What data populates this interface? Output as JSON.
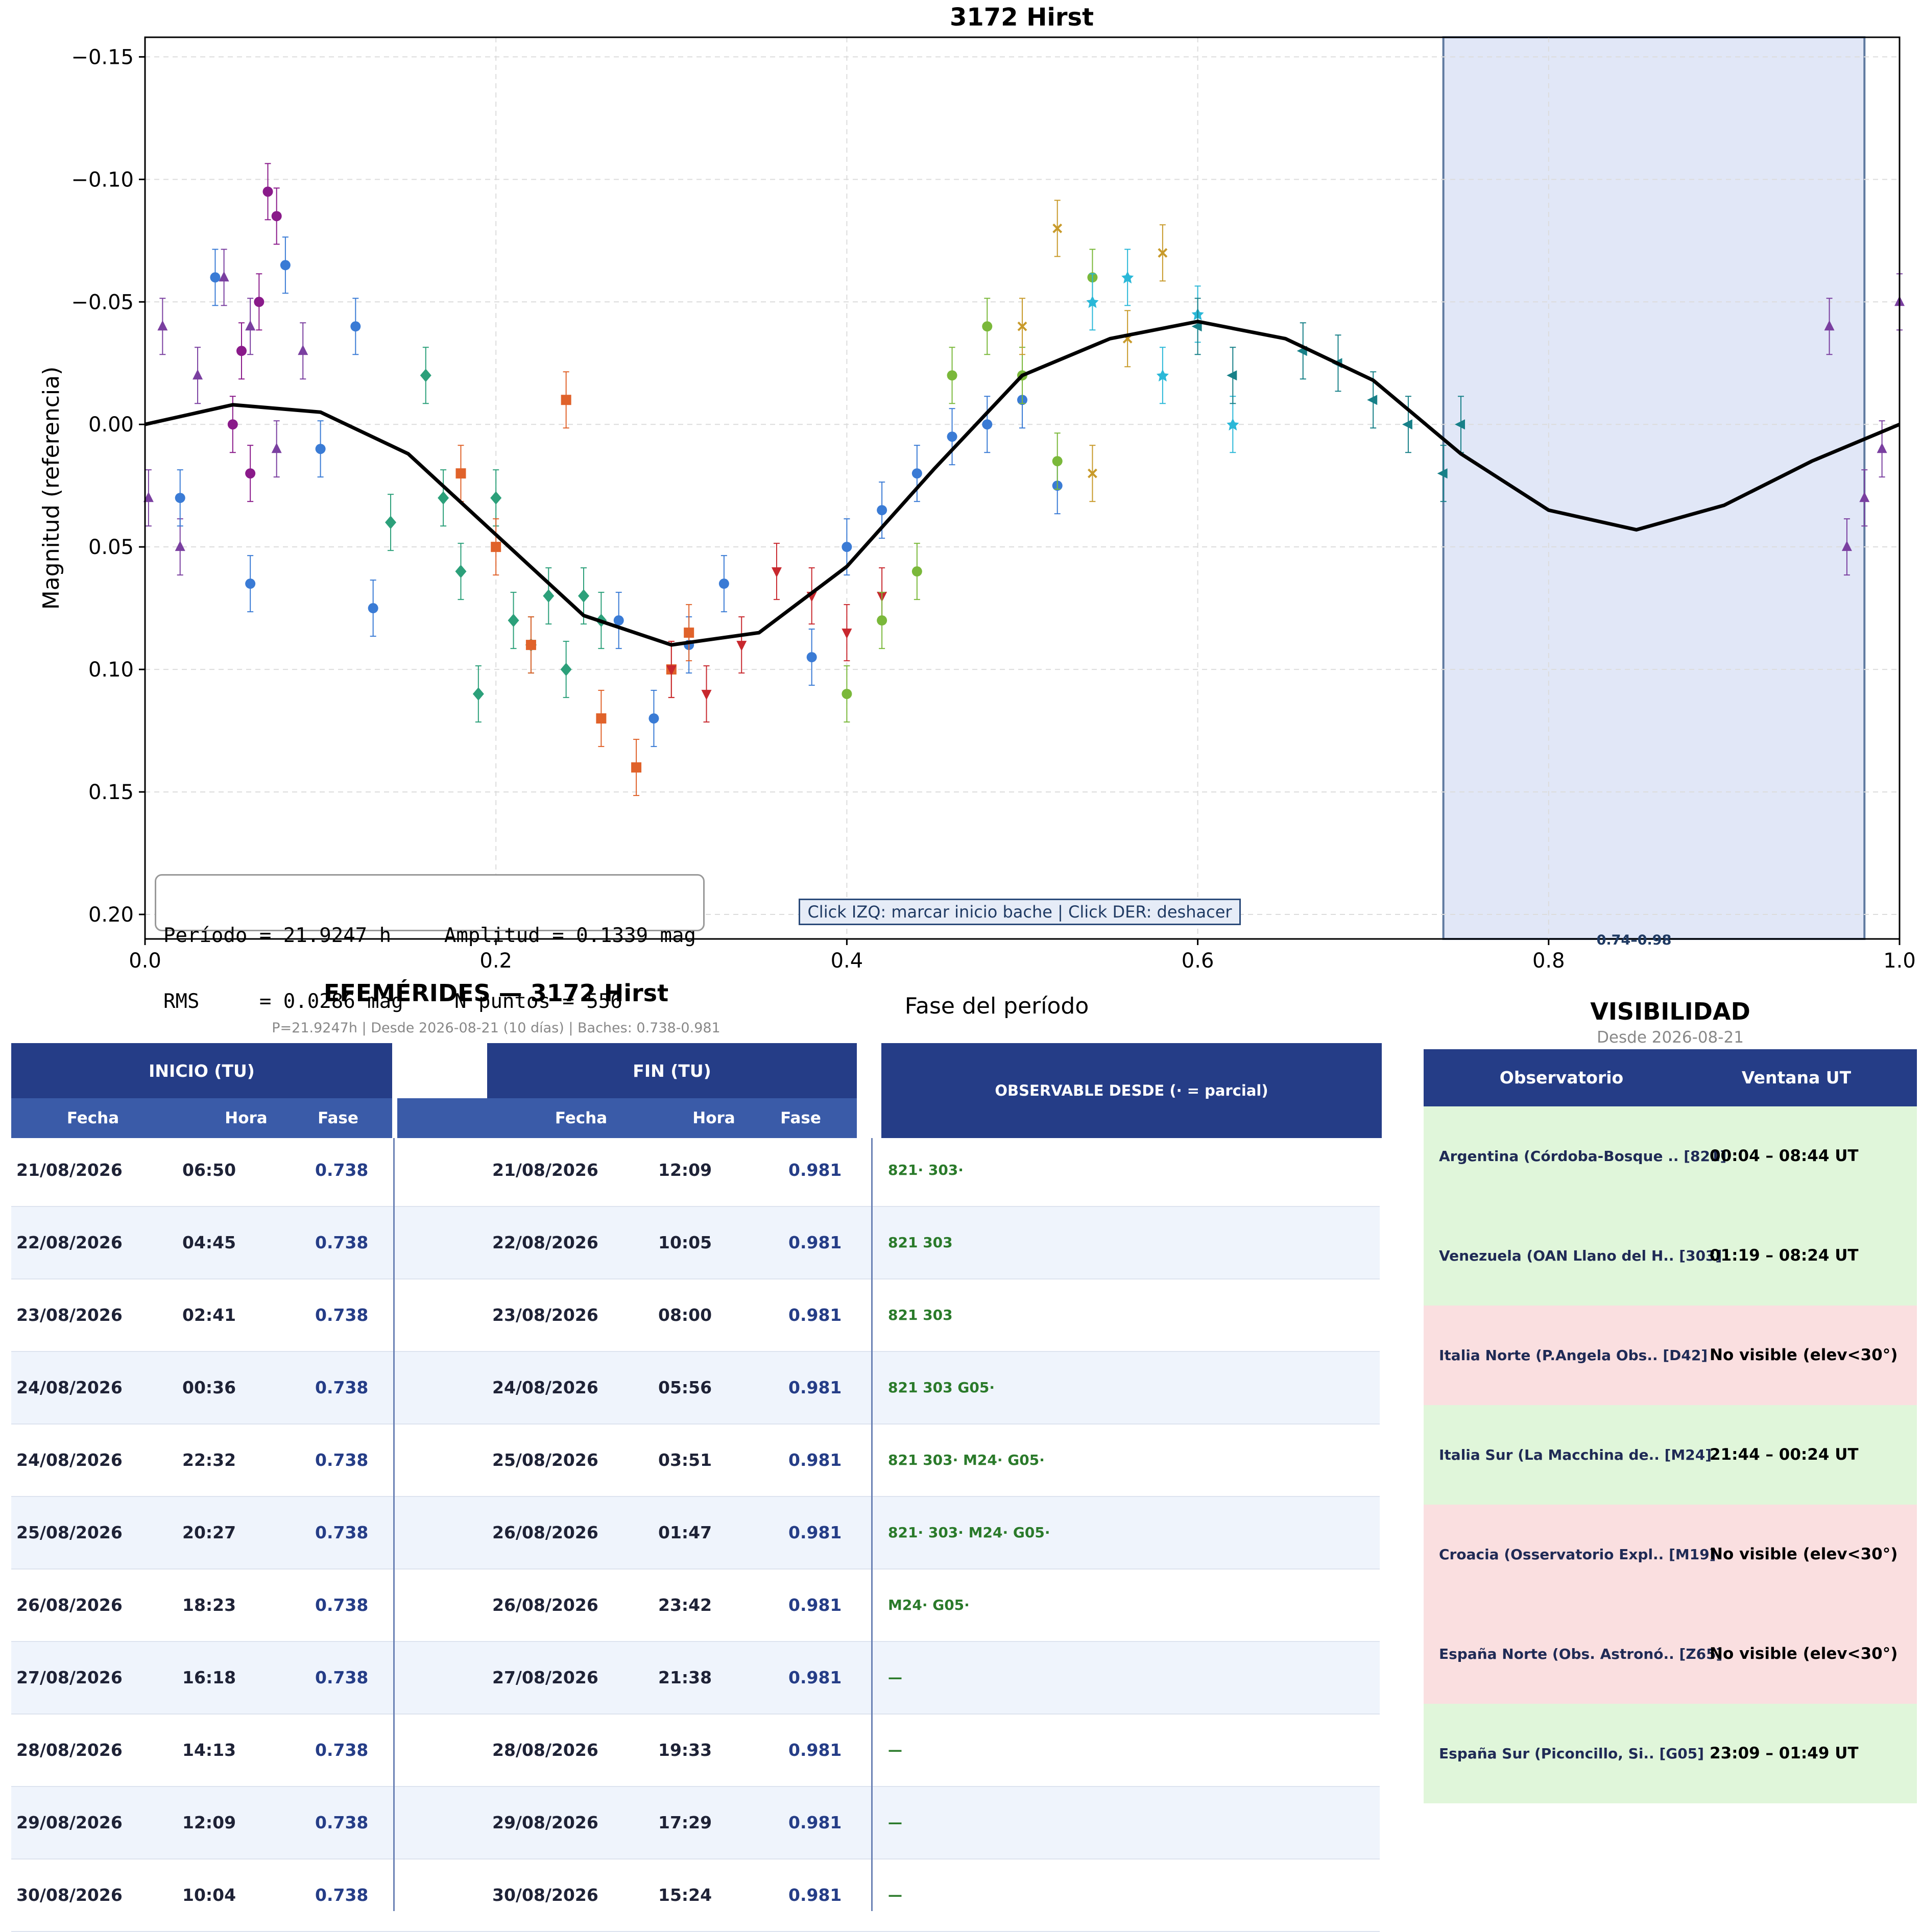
{
  "chart_data": {
    "type": "scatter",
    "title": "3172 Hirst",
    "xlabel": "Fase del período",
    "ylabel": "Magnitud (referencia)",
    "xlim": [
      0.0,
      1.0
    ],
    "ylim": [
      0.21,
      -0.158
    ],
    "y_inverted": true,
    "grid": true,
    "xticks": [
      "0.0",
      "0.2",
      "0.4",
      "0.6",
      "0.8",
      "1.0"
    ],
    "xtick_values": [
      0.0,
      0.2,
      0.4,
      0.6,
      0.8,
      1.0
    ],
    "yticks": [
      "−0.15",
      "−0.10",
      "−0.05",
      "0.00",
      "0.05",
      "0.10",
      "0.15",
      "0.20"
    ],
    "ytick_values": [
      -0.15,
      -0.1,
      -0.05,
      0.0,
      0.05,
      0.1,
      0.15,
      0.2
    ],
    "fit_curve": {
      "color": "#000000",
      "phase_mag": [
        [
          0.0,
          0.0
        ],
        [
          0.05,
          -0.008
        ],
        [
          0.1,
          -0.005
        ],
        [
          0.15,
          0.012
        ],
        [
          0.2,
          0.045
        ],
        [
          0.25,
          0.078
        ],
        [
          0.3,
          0.09
        ],
        [
          0.35,
          0.085
        ],
        [
          0.4,
          0.058
        ],
        [
          0.45,
          0.018
        ],
        [
          0.5,
          -0.02
        ],
        [
          0.55,
          -0.035
        ],
        [
          0.6,
          -0.042
        ],
        [
          0.65,
          -0.035
        ],
        [
          0.7,
          -0.018
        ],
        [
          0.75,
          0.012
        ],
        [
          0.8,
          0.035
        ],
        [
          0.85,
          0.043
        ],
        [
          0.9,
          0.033
        ],
        [
          0.95,
          0.015
        ],
        [
          1.0,
          0.0
        ]
      ]
    },
    "highlight_span": {
      "x": [
        0.74,
        0.98
      ],
      "label": "0.74–0.98",
      "color": "#e1e7f7"
    },
    "series": [
      {
        "color": "#7a3fa0",
        "marker": "triangle",
        "x": [
          0.002,
          0.01,
          0.02,
          0.03,
          0.045,
          0.06,
          0.075,
          0.09,
          0.96,
          0.97,
          0.98,
          0.99,
          1.0
        ],
        "y": [
          0.03,
          -0.04,
          0.05,
          -0.02,
          -0.06,
          -0.04,
          0.01,
          -0.03,
          -0.04,
          0.05,
          0.03,
          0.01,
          -0.05
        ]
      },
      {
        "color": "#8a1a8a",
        "marker": "circle",
        "x": [
          0.05,
          0.055,
          0.06,
          0.065,
          0.07,
          0.075
        ],
        "y": [
          0.0,
          -0.03,
          0.02,
          -0.05,
          -0.095,
          -0.085
        ]
      },
      {
        "color": "#3a7bd5",
        "marker": "circle",
        "x": [
          0.02,
          0.04,
          0.06,
          0.08,
          0.1,
          0.12,
          0.13,
          0.27,
          0.29,
          0.31,
          0.33,
          0.38,
          0.4,
          0.42,
          0.44,
          0.46,
          0.48,
          0.5,
          0.52
        ],
        "y": [
          0.03,
          -0.06,
          0.065,
          -0.065,
          0.01,
          -0.04,
          0.075,
          0.08,
          0.12,
          0.09,
          0.065,
          0.095,
          0.05,
          0.035,
          0.02,
          0.005,
          0.0,
          -0.01,
          0.025
        ]
      },
      {
        "color": "#2ca07a",
        "marker": "diamond",
        "x": [
          0.14,
          0.16,
          0.17,
          0.18,
          0.19,
          0.2,
          0.21,
          0.22,
          0.23,
          0.24,
          0.25,
          0.26
        ],
        "y": [
          0.04,
          -0.02,
          0.03,
          0.06,
          0.11,
          0.03,
          0.08,
          0.09,
          0.07,
          0.1,
          0.07,
          0.08
        ]
      },
      {
        "color": "#e0622a",
        "marker": "square",
        "x": [
          0.18,
          0.2,
          0.22,
          0.24,
          0.26,
          0.28,
          0.3,
          0.31
        ],
        "y": [
          0.02,
          0.05,
          0.09,
          -0.01,
          0.12,
          0.14,
          0.1,
          0.085
        ]
      },
      {
        "color": "#c8282e",
        "marker": "triangle-down",
        "x": [
          0.3,
          0.32,
          0.34,
          0.36,
          0.38,
          0.4,
          0.42
        ],
        "y": [
          0.1,
          0.11,
          0.09,
          0.06,
          0.07,
          0.085,
          0.07
        ]
      },
      {
        "color": "#7ab83a",
        "marker": "hexagon",
        "x": [
          0.4,
          0.42,
          0.44,
          0.46,
          0.48,
          0.5,
          0.52,
          0.54
        ],
        "y": [
          0.11,
          0.08,
          0.06,
          -0.02,
          -0.04,
          -0.02,
          0.015,
          -0.06
        ]
      },
      {
        "color": "#c89a2a",
        "marker": "x",
        "x": [
          0.5,
          0.52,
          0.54,
          0.56,
          0.58
        ],
        "y": [
          -0.04,
          -0.08,
          0.02,
          -0.035,
          -0.07
        ]
      },
      {
        "color": "#2ab8d8",
        "marker": "star",
        "x": [
          0.54,
          0.56,
          0.58,
          0.6,
          0.62
        ],
        "y": [
          -0.05,
          -0.06,
          -0.02,
          -0.045,
          0.0
        ]
      },
      {
        "color": "#178088",
        "marker": "triangle-left",
        "x": [
          0.6,
          0.62,
          0.66,
          0.68,
          0.7,
          0.72,
          0.74,
          0.75
        ],
        "y": [
          -0.04,
          -0.02,
          -0.03,
          -0.025,
          -0.01,
          0.0,
          0.02,
          0.0
        ]
      }
    ]
  },
  "stats": {
    "periodo": "Período = 21.9247 h",
    "amplitud": "Amplitud = 0.1339 mag",
    "rms": "RMS     = 0.0286 mag",
    "npuntos": "N puntos = 556"
  },
  "hint": "Click IZQ: marcar inicio bache  |  Click DER: deshacer",
  "ephemeris": {
    "title": "EFEMÉRIDES — 3172 Hirst",
    "subtitle": "P=21.9247h  |  Desde 2026-08-21 (10 días)  |  Baches: 0.738-0.981",
    "inicio_header": "INICIO (TU)",
    "fin_header": "FIN (TU)",
    "observable_header": "OBSERVABLE DESDE  (· = parcial)",
    "col_fecha": "Fecha",
    "col_hora": "Hora",
    "col_fase": "Fase",
    "rows": [
      {
        "d1": "21/08/2026",
        "h1": "06:50",
        "f1": "0.738",
        "d2": "21/08/2026",
        "h2": "12:09",
        "f2": "0.981",
        "obs": "821· 303·"
      },
      {
        "d1": "22/08/2026",
        "h1": "04:45",
        "f1": "0.738",
        "d2": "22/08/2026",
        "h2": "10:05",
        "f2": "0.981",
        "obs": "821 303"
      },
      {
        "d1": "23/08/2026",
        "h1": "02:41",
        "f1": "0.738",
        "d2": "23/08/2026",
        "h2": "08:00",
        "f2": "0.981",
        "obs": "821 303"
      },
      {
        "d1": "24/08/2026",
        "h1": "00:36",
        "f1": "0.738",
        "d2": "24/08/2026",
        "h2": "05:56",
        "f2": "0.981",
        "obs": "821 303 G05·"
      },
      {
        "d1": "24/08/2026",
        "h1": "22:32",
        "f1": "0.738",
        "d2": "25/08/2026",
        "h2": "03:51",
        "f2": "0.981",
        "obs": "821 303· M24· G05·"
      },
      {
        "d1": "25/08/2026",
        "h1": "20:27",
        "f1": "0.738",
        "d2": "26/08/2026",
        "h2": "01:47",
        "f2": "0.981",
        "obs": "821· 303· M24· G05·"
      },
      {
        "d1": "26/08/2026",
        "h1": "18:23",
        "f1": "0.738",
        "d2": "26/08/2026",
        "h2": "23:42",
        "f2": "0.981",
        "obs": "M24· G05·"
      },
      {
        "d1": "27/08/2026",
        "h1": "16:18",
        "f1": "0.738",
        "d2": "27/08/2026",
        "h2": "21:38",
        "f2": "0.981",
        "obs": "—"
      },
      {
        "d1": "28/08/2026",
        "h1": "14:13",
        "f1": "0.738",
        "d2": "28/08/2026",
        "h2": "19:33",
        "f2": "0.981",
        "obs": "—"
      },
      {
        "d1": "29/08/2026",
        "h1": "12:09",
        "f1": "0.738",
        "d2": "29/08/2026",
        "h2": "17:29",
        "f2": "0.981",
        "obs": "—"
      },
      {
        "d1": "30/08/2026",
        "h1": "10:04",
        "f1": "0.738",
        "d2": "30/08/2026",
        "h2": "15:24",
        "f2": "0.981",
        "obs": "—"
      }
    ]
  },
  "visibility": {
    "title": "VISIBILIDAD",
    "subtitle": "Desde 2026-08-21",
    "col_observatorio": "Observatorio",
    "col_ventana": "Ventana UT",
    "rows": [
      {
        "name": "Argentina (Córdoba-Bosque .. [821]",
        "window": "00:04 – 08:44 UT",
        "visible": true
      },
      {
        "name": "Venezuela (OAN Llano del H.. [303]",
        "window": "01:19 – 08:24 UT",
        "visible": true
      },
      {
        "name": "Italia Norte (P.Angela Obs.. [D42]",
        "window": "No visible (elev<30°)",
        "visible": false
      },
      {
        "name": "Italia Sur (La Macchina de.. [M24]",
        "window": "21:44 – 00:24 UT",
        "visible": true
      },
      {
        "name": "Croacia (Osservatorio Expl.. [M19]",
        "window": "No visible (elev<30°)",
        "visible": false
      },
      {
        "name": "España Norte (Obs. Astronó.. [Z65]",
        "window": "No visible (elev<30°)",
        "visible": false
      },
      {
        "name": "España Sur (Piconcillo, Si.. [G05]",
        "window": "23:09 – 01:49 UT",
        "visible": true
      }
    ]
  }
}
